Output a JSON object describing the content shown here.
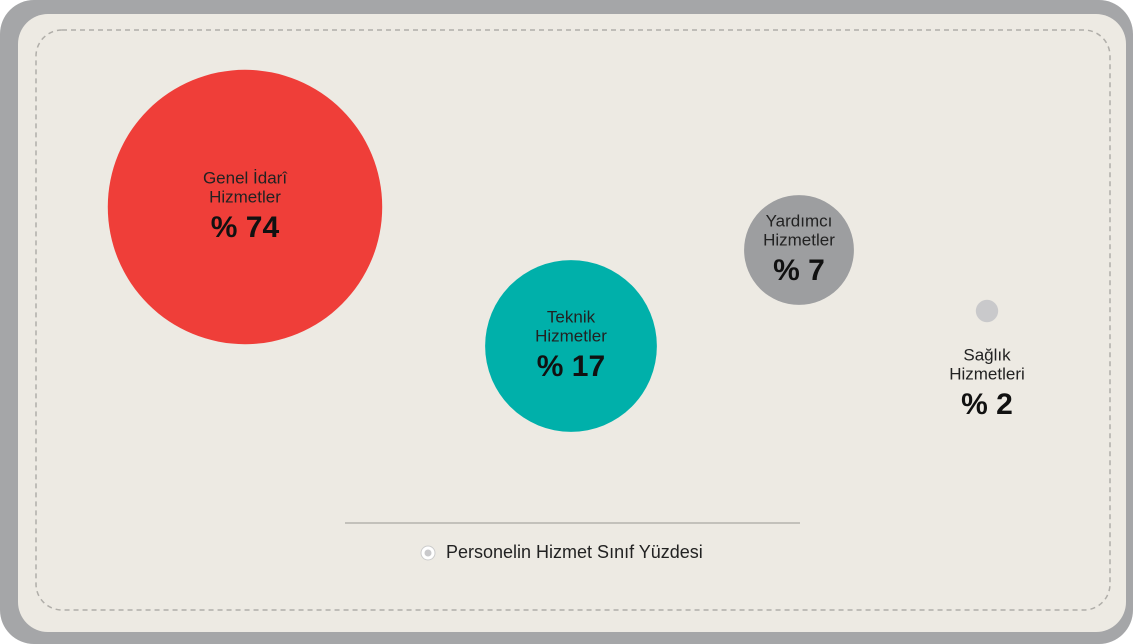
{
  "chart_data": {
    "type": "bubble",
    "categories": [
      [
        "Genel İdarî",
        "Hizmetler"
      ],
      [
        "Teknik",
        "Hizmetler"
      ],
      [
        "Yardımcı",
        "Hizmetler"
      ],
      [
        "Sağlık",
        "Hizmetleri"
      ]
    ],
    "series": [
      {
        "name": "Personelin Hizmet Sınıf Yüzdesi",
        "values": [
          74,
          17,
          7,
          2
        ],
        "value_labels": [
          "% 74",
          "% 17",
          "% 7",
          "% 2"
        ],
        "colors": [
          "#ef3e39",
          "#00b0aa",
          "#9d9ea0",
          "#c9c9cb"
        ]
      }
    ]
  }
}
